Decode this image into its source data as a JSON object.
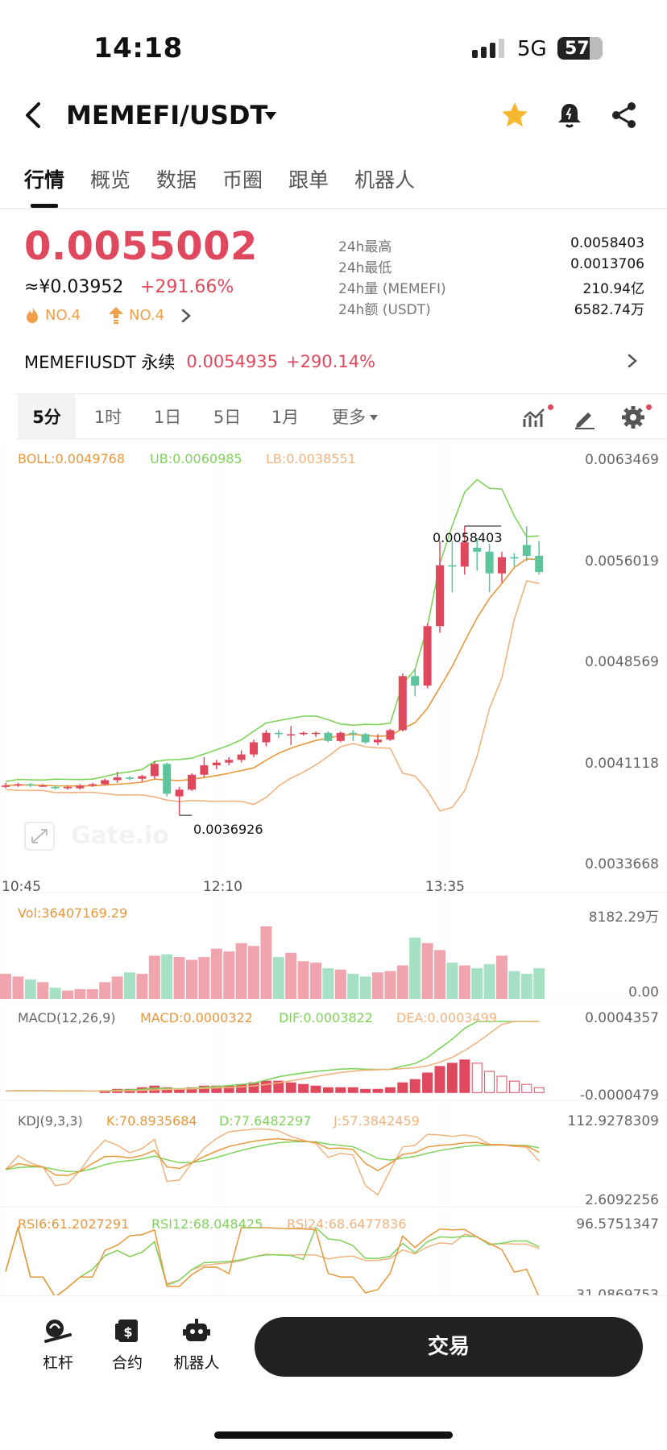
{
  "status": {
    "time": "14:18",
    "network": "5G",
    "battery": "57"
  },
  "header": {
    "pair": "MEMEFI/USDT",
    "icons": [
      "back-icon",
      "caret-down-icon",
      "star-icon",
      "bell-icon",
      "share-icon"
    ]
  },
  "tabs": [
    "行情",
    "概览",
    "数据",
    "币圈",
    "跟单",
    "机器人"
  ],
  "price": {
    "last": "0.0055002",
    "cny": "≈¥0.03952",
    "change": "+291.66%",
    "rank_hot": "NO.4",
    "rank_gain": "NO.4"
  },
  "stats": [
    {
      "label": "24h最高",
      "value": "0.0058403"
    },
    {
      "label": "24h最低",
      "value": "0.0013706"
    },
    {
      "label": "24h量 (MEMEFI)",
      "value": "210.94亿"
    },
    {
      "label": "24h额 (USDT)",
      "value": "6582.74万"
    }
  ],
  "perp": {
    "name": "MEMEFIUSDT 永续",
    "price": "0.0054935",
    "change": "+290.14%"
  },
  "intervals": [
    "5分",
    "1时",
    "1日",
    "5日",
    "1月",
    "更多"
  ],
  "colors": {
    "up": "#e0495d",
    "down": "#5cc59b",
    "boll": "#e8973a",
    "ub": "#7fd35b",
    "lb": "#f0b37f"
  },
  "chart": {
    "boll_label": "BOLL:0.0049768",
    "ub_label": "UB:0.0060985",
    "lb_label": "LB:0.0038551",
    "y_axis": [
      "0.0063469",
      "0.0056019",
      "0.0048569",
      "0.0041118",
      "0.0033668"
    ],
    "x_axis": [
      "10:45",
      "12:10",
      "13:35"
    ],
    "high_label": "0.0058403",
    "low_label": "0.0036926",
    "watermark": "Gate.io",
    "vol_label": "Vol:36407169.29",
    "vol_axis": [
      "8182.29万",
      "0.00"
    ],
    "macd_labels": [
      "MACD(12,26,9)",
      "MACD:0.0000322",
      "DIF:0.0003822",
      "DEA:0.0003499"
    ],
    "macd_axis": [
      "0.0004357",
      "-0.0000479"
    ],
    "kdj_labels": [
      "KDJ(9,3,3)",
      "K:70.8935684",
      "D:77.6482297",
      "J:57.3842459"
    ],
    "kdj_axis": [
      "112.9278309",
      "2.6092256"
    ],
    "rsi_labels": [
      "RSI6:61.2027291",
      "RSI12:68.048425",
      "RSI24:68.6477836"
    ],
    "rsi_axis": [
      "96.5751347",
      "31.0869753"
    ]
  },
  "chart_data": {
    "type": "candlestick",
    "y_range": [
      0.0033668,
      0.0063469
    ],
    "candles": [
      [
        0.00391,
        0.00392,
        0.0039,
        0.00394
      ],
      [
        0.00392,
        0.00393,
        0.00391,
        0.00394
      ],
      [
        0.00393,
        0.00392,
        0.00391,
        0.00394
      ],
      [
        0.00392,
        0.00392,
        0.00391,
        0.00393
      ],
      [
        0.00391,
        0.0039,
        0.00389,
        0.00392
      ],
      [
        0.0039,
        0.00391,
        0.00389,
        0.00392
      ],
      [
        0.0039,
        0.00392,
        0.00389,
        0.00393
      ],
      [
        0.00392,
        0.00393,
        0.00391,
        0.00394
      ],
      [
        0.00393,
        0.00396,
        0.00392,
        0.00397
      ],
      [
        0.00396,
        0.00398,
        0.00394,
        0.00402
      ],
      [
        0.00398,
        0.00397,
        0.00396,
        0.00399
      ],
      [
        0.00397,
        0.00399,
        0.00395,
        0.004
      ],
      [
        0.00399,
        0.00408,
        0.00397,
        0.0041
      ],
      [
        0.00408,
        0.00386,
        0.00384,
        0.00409
      ],
      [
        0.00384,
        0.00389,
        0.0037,
        0.00391
      ],
      [
        0.00389,
        0.004,
        0.00388,
        0.00401
      ],
      [
        0.004,
        0.00407,
        0.00398,
        0.00413
      ],
      [
        0.00407,
        0.00409,
        0.00404,
        0.00411
      ],
      [
        0.00409,
        0.00411,
        0.00407,
        0.00413
      ],
      [
        0.00411,
        0.00415,
        0.00409,
        0.00418
      ],
      [
        0.00415,
        0.00424,
        0.00413,
        0.00426
      ],
      [
        0.00424,
        0.00431,
        0.00421,
        0.00433
      ],
      [
        0.00431,
        0.0043,
        0.00427,
        0.00433
      ],
      [
        0.0043,
        0.0043,
        0.00422,
        0.00436
      ],
      [
        0.0043,
        0.00431,
        0.00429,
        0.00432
      ],
      [
        0.00431,
        0.00431,
        0.00428,
        0.00432
      ],
      [
        0.00431,
        0.00425,
        0.00424,
        0.00432
      ],
      [
        0.00425,
        0.00431,
        0.00424,
        0.00432
      ],
      [
        0.00431,
        0.0043,
        0.00425,
        0.00433
      ],
      [
        0.0043,
        0.00424,
        0.00423,
        0.00431
      ],
      [
        0.00424,
        0.00426,
        0.00422,
        0.0043
      ],
      [
        0.00426,
        0.00433,
        0.00425,
        0.00434
      ],
      [
        0.00433,
        0.00473,
        0.00432,
        0.00475
      ],
      [
        0.00473,
        0.00466,
        0.00458,
        0.00478
      ],
      [
        0.00466,
        0.0051,
        0.00464,
        0.00512
      ],
      [
        0.0051,
        0.00555,
        0.00505,
        0.00573
      ],
      [
        0.00555,
        0.00554,
        0.00535,
        0.00573
      ],
      [
        0.00554,
        0.00572,
        0.00548,
        0.00584
      ],
      [
        0.00568,
        0.00565,
        0.00551,
        0.00575
      ],
      [
        0.00565,
        0.00549,
        0.00535,
        0.00571
      ],
      [
        0.00549,
        0.00561,
        0.00542,
        0.00565
      ],
      [
        0.00561,
        0.0056,
        0.00554,
        0.00564
      ],
      [
        0.0057,
        0.00562,
        0.00558,
        0.00584
      ],
      [
        0.00562,
        0.0055,
        0.00548,
        0.00573
      ]
    ],
    "volume_range": [
      0,
      81822900
    ],
    "volumes": [
      18,
      16,
      14,
      12,
      8,
      6,
      7,
      7,
      12,
      16,
      19,
      18,
      31,
      32,
      30,
      28,
      30,
      36,
      34,
      40,
      38,
      52,
      30,
      33,
      27,
      26,
      22,
      21,
      18,
      16,
      19,
      20,
      24,
      44,
      40,
      35,
      26,
      24,
      22,
      25,
      31,
      20,
      18,
      22
    ],
    "macd_range": [
      -4.79e-05,
      0.0004357
    ],
    "macd_hist": [
      0,
      0,
      0,
      0,
      0,
      0,
      0,
      0,
      1e-05,
      2e-05,
      2e-05,
      3e-05,
      4e-05,
      3e-05,
      2e-05,
      3e-05,
      4e-05,
      4e-05,
      4e-05,
      5e-05,
      6e-05,
      7e-05,
      7e-05,
      6e-05,
      5e-05,
      4e-05,
      3e-05,
      3e-05,
      3e-05,
      2e-05,
      2e-05,
      3e-05,
      6e-05,
      8e-05,
      0.00012,
      0.00016,
      0.00018,
      0.0002,
      0.00018,
      0.00013,
      0.0001,
      7e-05,
      5e-05,
      3e-05
    ],
    "kdj_range": [
      2.6092256,
      112.9278309
    ],
    "rsi_range": [
      31.0869753,
      96.5751347
    ]
  },
  "bottom": {
    "nav": [
      {
        "label": "杠杆",
        "icon": "leverage-icon"
      },
      {
        "label": "合约",
        "icon": "contract-icon"
      },
      {
        "label": "机器人",
        "icon": "robot-icon"
      }
    ],
    "trade": "交易"
  }
}
